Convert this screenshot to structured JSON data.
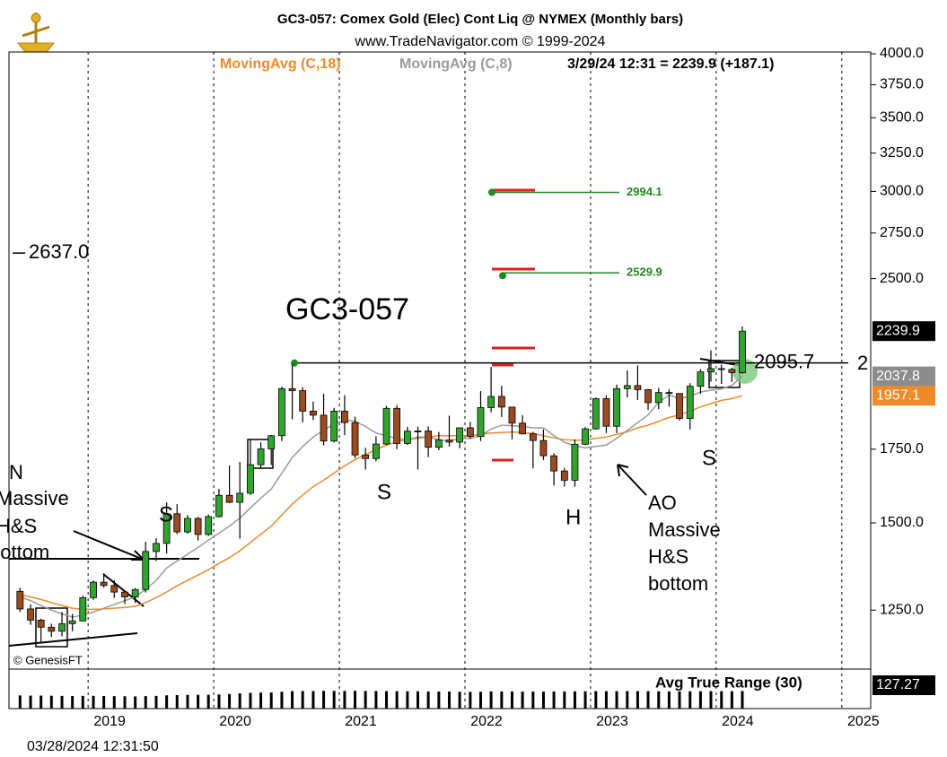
{
  "header": {
    "title": "GC3-057:  Comex Gold (Elec) Cont Liq @ NYMEX  (Monthly bars)",
    "subtitle": "www.TradeNavigator.com © 1999-2024",
    "quote": "3/29/24 12:31 = 2239.9 (+187.1)",
    "timestamp": "03/28/2024 12:31:50",
    "copyright": "© GenesisFT"
  },
  "chart_data": {
    "type": "candlestick",
    "x": [
      2018.458,
      2018.542,
      2018.625,
      2018.708,
      2018.792,
      2018.875,
      2018.958,
      2019.042,
      2019.125,
      2019.208,
      2019.292,
      2019.375,
      2019.458,
      2019.542,
      2019.625,
      2019.708,
      2019.792,
      2019.875,
      2019.958,
      2020.042,
      2020.125,
      2020.208,
      2020.292,
      2020.375,
      2020.458,
      2020.542,
      2020.625,
      2020.708,
      2020.792,
      2020.875,
      2020.958,
      2021.042,
      2021.125,
      2021.208,
      2021.292,
      2021.375,
      2021.458,
      2021.542,
      2021.625,
      2021.708,
      2021.792,
      2021.875,
      2021.958,
      2022.042,
      2022.125,
      2022.208,
      2022.292,
      2022.375,
      2022.458,
      2022.542,
      2022.625,
      2022.708,
      2022.792,
      2022.875,
      2022.958,
      2023.042,
      2023.125,
      2023.208,
      2023.292,
      2023.375,
      2023.458,
      2023.542,
      2023.625,
      2023.708,
      2023.792,
      2023.875,
      2023.958,
      2024.042,
      2024.125,
      2024.208
    ],
    "open": [
      1300,
      1253,
      1224,
      1206,
      1196,
      1215,
      1222,
      1283,
      1325,
      1316,
      1298,
      1285,
      1305,
      1413,
      1437,
      1529,
      1472,
      1514,
      1464,
      1520,
      1589,
      1566,
      1596,
      1694,
      1751,
      1800,
      1986,
      1978,
      1895,
      1879,
      1780,
      1895,
      1850,
      1729,
      1716,
      1769,
      1906,
      1771,
      1817,
      1818,
      1757,
      1784,
      1776,
      1830,
      1797,
      1909,
      1954,
      1911,
      1848,
      1807,
      1782,
      1726,
      1672,
      1640,
      1768,
      1826,
      1945,
      1836,
      1986,
      1999,
      1982,
      1929,
      1970,
      1966,
      1866,
      1996,
      2057,
      2071,
      2067,
      2054
    ],
    "high": [
      1310,
      1265,
      1228,
      1215,
      1245,
      1240,
      1288,
      1330,
      1350,
      1330,
      1300,
      1309,
      1442,
      1453,
      1566,
      1560,
      1525,
      1519,
      1526,
      1611,
      1691,
      1704,
      1788,
      1775,
      1803,
      1995,
      2089,
      1992,
      1933,
      1965,
      1908,
      1959,
      1873,
      1755,
      1798,
      1916,
      1919,
      1834,
      1834,
      1836,
      1814,
      1877,
      1831,
      1853,
      1976,
      2078,
      1998,
      1909,
      1879,
      1815,
      1824,
      1735,
      1683,
      1786,
      1833,
      1949,
      1959,
      2003,
      2063,
      2085,
      1985,
      1989,
      1983,
      1953,
      2009,
      2069,
      2152,
      2088,
      2075,
      2262
    ],
    "low": [
      1245,
      1212,
      1170,
      1182,
      1183,
      1196,
      1221,
      1277,
      1310,
      1282,
      1266,
      1269,
      1297,
      1385,
      1407,
      1465,
      1466,
      1446,
      1460,
      1517,
      1563,
      1451,
      1591,
      1682,
      1693,
      1780,
      1863,
      1851,
      1860,
      1764,
      1775,
      1802,
      1717,
      1677,
      1706,
      1765,
      1750,
      1766,
      1677,
      1721,
      1746,
      1760,
      1753,
      1788,
      1780,
      1890,
      1872,
      1786,
      1805,
      1681,
      1711,
      1622,
      1618,
      1618,
      1765,
      1823,
      1810,
      1810,
      1950,
      1940,
      1900,
      1903,
      1913,
      1858,
      1823,
      1965,
      2015,
      2006,
      2014,
      2049
    ],
    "close": [
      1253,
      1224,
      1206,
      1196,
      1215,
      1222,
      1283,
      1325,
      1316,
      1298,
      1285,
      1305,
      1413,
      1437,
      1529,
      1472,
      1514,
      1464,
      1520,
      1589,
      1566,
      1596,
      1694,
      1751,
      1800,
      1986,
      1978,
      1895,
      1879,
      1780,
      1895,
      1850,
      1729,
      1716,
      1769,
      1906,
      1771,
      1817,
      1818,
      1757,
      1784,
      1776,
      1830,
      1797,
      1909,
      1954,
      1911,
      1848,
      1807,
      1782,
      1726,
      1672,
      1640,
      1768,
      1826,
      1945,
      1836,
      1986,
      1999,
      1982,
      1929,
      1970,
      1966,
      1866,
      1996,
      2057,
      2071,
      2067,
      2054,
      2239.9
    ],
    "up_color": "#2fa52f",
    "down_color": "#9c4a1f",
    "series": [
      {
        "name": "MovingAvg (C,18)",
        "color": "#f0892a",
        "values": [
          1290,
          1285,
          1278,
          1270,
          1262,
          1255,
          1252,
          1252,
          1253,
          1255,
          1257,
          1260,
          1270,
          1283,
          1298,
          1315,
          1330,
          1345,
          1360,
          1378,
          1395,
          1415,
          1440,
          1465,
          1490,
          1525,
          1560,
          1590,
          1618,
          1640,
          1665,
          1690,
          1712,
          1730,
          1748,
          1765,
          1778,
          1785,
          1790,
          1795,
          1800,
          1800,
          1800,
          1800,
          1805,
          1810,
          1812,
          1814,
          1812,
          1808,
          1800,
          1792,
          1785,
          1783,
          1783,
          1790,
          1795,
          1805,
          1815,
          1830,
          1840,
          1855,
          1870,
          1880,
          1895,
          1912,
          1925,
          1938,
          1945,
          1957.1
        ]
      },
      {
        "name": "MovingAvg (C,8)",
        "color": "#9a9a9a",
        "values": [
          1285,
          1275,
          1262,
          1250,
          1240,
          1232,
          1237,
          1245,
          1255,
          1265,
          1275,
          1285,
          1305,
          1330,
          1365,
          1385,
          1405,
          1425,
          1447,
          1468,
          1490,
          1515,
          1548,
          1580,
          1610,
          1665,
          1720,
          1760,
          1795,
          1820,
          1845,
          1860,
          1855,
          1835,
          1810,
          1800,
          1790,
          1785,
          1795,
          1795,
          1785,
          1780,
          1790,
          1790,
          1800,
          1825,
          1840,
          1838,
          1835,
          1830,
          1830,
          1800,
          1775,
          1762,
          1755,
          1760,
          1765,
          1790,
          1820,
          1850,
          1880,
          1930,
          1960,
          1945,
          1955,
          1972,
          1980,
          1985,
          2000,
          2037.8
        ]
      }
    ],
    "xlim": [
      2018.37,
      2025.23
    ],
    "xticks": [
      2019,
      2020,
      2021,
      2022,
      2023,
      2024,
      2025
    ],
    "ylim": [
      1107,
      4015
    ],
    "log_scale": true,
    "yticks": [
      {
        "value": 1250,
        "label": "1250.0"
      },
      {
        "value": 1500,
        "label": "1500.0"
      },
      {
        "value": 1750,
        "label": "1750.0"
      },
      {
        "value": 2500,
        "label": "2500.0"
      },
      {
        "value": 2750,
        "label": "2750.0"
      },
      {
        "value": 3000,
        "label": "3000.0"
      },
      {
        "value": 3250,
        "label": "3250.0"
      },
      {
        "value": 3500,
        "label": "3500.0"
      },
      {
        "value": 3750,
        "label": "3750.0"
      },
      {
        "value": 4000,
        "label": "4000.0"
      }
    ],
    "grid": "x",
    "neckline": 2095.7,
    "targets": [
      2994.1,
      2529.9
    ],
    "level": {
      "value": 2637,
      "label": "2637.0"
    },
    "annotations": [
      "GC3-057",
      "S",
      "H",
      "S",
      "S",
      "AO",
      "Massive",
      "H&S",
      "bottom",
      "N",
      "Massive",
      "H&S",
      "bottom",
      "2"
    ],
    "indicator": {
      "title": "Avg True Range (30)",
      "color": "#000000",
      "ylim": [
        0,
        130
      ],
      "values": [
        95,
        94,
        94,
        93,
        92,
        91,
        92,
        92,
        91,
        90,
        89,
        88,
        90,
        92,
        96,
        98,
        99,
        100,
        100,
        102,
        105,
        110,
        114,
        116,
        117,
        122,
        126,
        127,
        127,
        128,
        128,
        128,
        129,
        128,
        127,
        126,
        126,
        125,
        125,
        124,
        123,
        123,
        122,
        121,
        122,
        124,
        124,
        124,
        123,
        123,
        123,
        124,
        124,
        125,
        125,
        126,
        126,
        126,
        127,
        127,
        126,
        125,
        124,
        124,
        125,
        125,
        126,
        126,
        126,
        127.27
      ]
    }
  }
}
